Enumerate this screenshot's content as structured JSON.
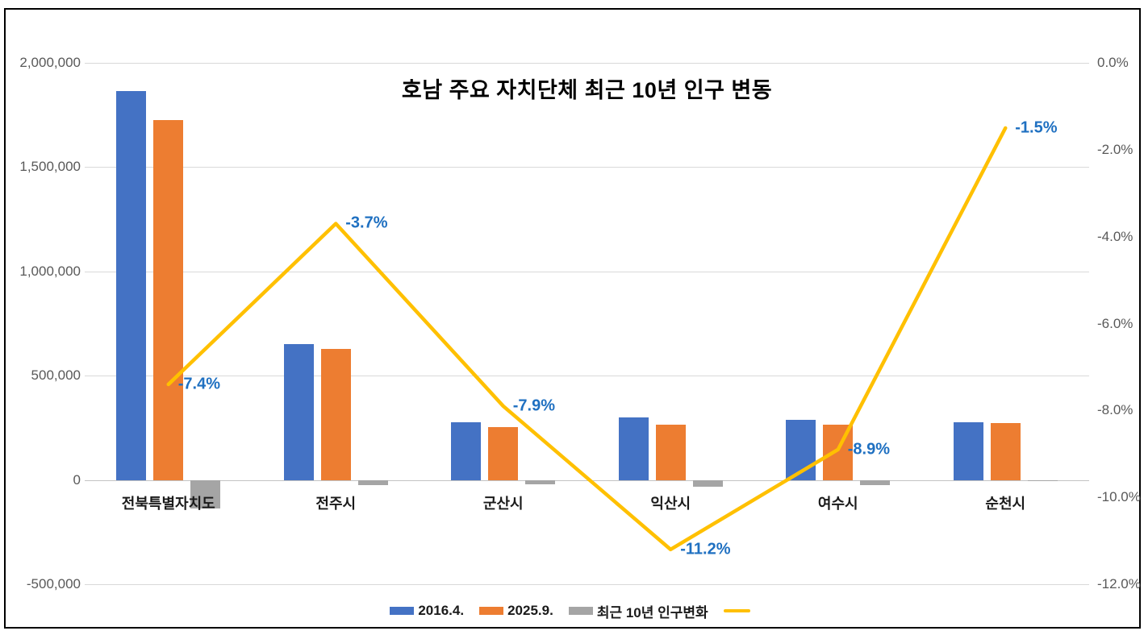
{
  "chart_data": {
    "type": "bar",
    "subtype": "clustered-bar-with-line-combo",
    "title": "호남 주요 자치단체 최근 10년 인구 변동",
    "categories": [
      "전북특별자치도",
      "전주시",
      "군산시",
      "익산시",
      "여수시",
      "순천시"
    ],
    "series": [
      {
        "name": "2016.4.",
        "type": "bar",
        "color": "#4472C4",
        "values": [
          1864000,
          652000,
          277000,
          299000,
          290000,
          278000
        ]
      },
      {
        "name": "2025.9.",
        "type": "bar",
        "color": "#ED7D31",
        "values": [
          1726000,
          628000,
          255000,
          266000,
          264000,
          274000
        ]
      },
      {
        "name": "최근 10년 인구변화",
        "type": "bar",
        "color": "#A5A5A5",
        "values": [
          -138000,
          -24000,
          -22000,
          -33000,
          -26000,
          -4000
        ]
      },
      {
        "name": "",
        "type": "line",
        "axis": "right",
        "color": "#FFC000",
        "values": [
          -7.4,
          -3.7,
          -7.9,
          -11.2,
          -8.9,
          -1.5
        ],
        "labels": [
          "-7.4%",
          "-3.7%",
          "-7.9%",
          "-11.2%",
          "-8.9%",
          "-1.5%"
        ]
      }
    ],
    "left_axis": {
      "min": -500000,
      "max": 2000000,
      "step": 500000,
      "tick_labels": [
        "2,000,000",
        "1,500,000",
        "1,000,000",
        "500,000",
        "0",
        "-500,000"
      ]
    },
    "right_axis": {
      "min": -12,
      "max": 0,
      "step": 2,
      "tick_labels": [
        "0.0%",
        "-2.0%",
        "-4.0%",
        "-6.0%",
        "-8.0%",
        "-10.0%",
        "-12.0%"
      ]
    },
    "grid": true,
    "legend_position": "bottom",
    "data_label_color": "#1F70C1",
    "gridline_color": "#D9D9D9",
    "axis_text_color": "#595959"
  }
}
